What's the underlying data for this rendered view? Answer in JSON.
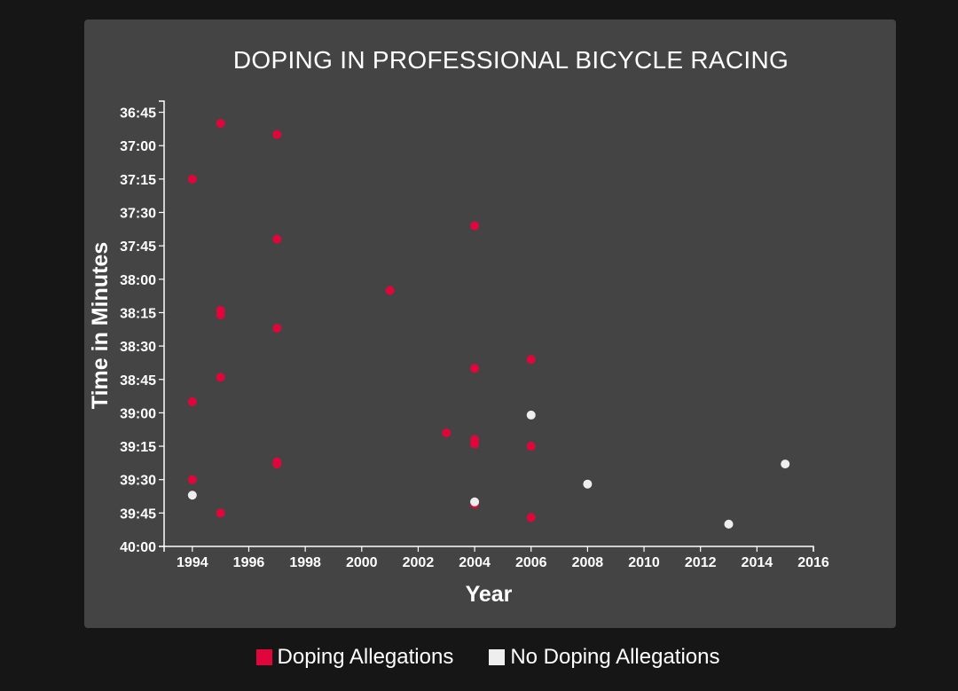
{
  "colors": {
    "background": "#161616",
    "panel": "#444444",
    "doping": "#e0063c",
    "no_doping": "#eeeeee"
  },
  "chart_data": {
    "type": "scatter",
    "title": "DOPING IN PROFESSIONAL BICYCLE RACING",
    "xlabel": "Year",
    "ylabel": "Time in Minutes",
    "xlim": [
      1993,
      2016
    ],
    "ylim": [
      "36:40",
      "40:00"
    ],
    "x_ticks": [
      1994,
      1996,
      1998,
      2000,
      2002,
      2004,
      2006,
      2008,
      2010,
      2012,
      2014,
      2016
    ],
    "y_ticks": [
      "36:45",
      "37:00",
      "37:15",
      "37:30",
      "37:45",
      "38:00",
      "38:15",
      "38:30",
      "38:45",
      "39:00",
      "39:15",
      "39:30",
      "39:45",
      "40:00"
    ],
    "y_inverted": true,
    "grid": false,
    "legend": {
      "position": "bottom-center",
      "entries": [
        {
          "label": "Doping Allegations",
          "key": "doping"
        },
        {
          "label": "No Doping Allegations",
          "key": "no_doping"
        }
      ]
    },
    "series": [
      {
        "name": "Doping Allegations",
        "key": "doping",
        "points": [
          {
            "x": 1995,
            "y": "36:50"
          },
          {
            "x": 1997,
            "y": "36:55"
          },
          {
            "x": 1994,
            "y": "37:15"
          },
          {
            "x": 2004,
            "y": "37:36"
          },
          {
            "x": 1997,
            "y": "37:42"
          },
          {
            "x": 2001,
            "y": "38:05"
          },
          {
            "x": 1995,
            "y": "38:14"
          },
          {
            "x": 1995,
            "y": "38:16"
          },
          {
            "x": 1997,
            "y": "38:22"
          },
          {
            "x": 2006,
            "y": "38:36"
          },
          {
            "x": 2004,
            "y": "38:40"
          },
          {
            "x": 1995,
            "y": "38:44"
          },
          {
            "x": 1994,
            "y": "38:55"
          },
          {
            "x": 2003,
            "y": "39:09"
          },
          {
            "x": 2004,
            "y": "39:12"
          },
          {
            "x": 2004,
            "y": "39:14"
          },
          {
            "x": 2006,
            "y": "39:15"
          },
          {
            "x": 1997,
            "y": "39:22"
          },
          {
            "x": 1997,
            "y": "39:23"
          },
          {
            "x": 1994,
            "y": "39:30"
          },
          {
            "x": 2004,
            "y": "39:41"
          },
          {
            "x": 1995,
            "y": "39:45"
          },
          {
            "x": 2006,
            "y": "39:47"
          }
        ]
      },
      {
        "name": "No Doping Allegations",
        "key": "no_doping",
        "points": [
          {
            "x": 2006,
            "y": "39:01"
          },
          {
            "x": 2015,
            "y": "39:23"
          },
          {
            "x": 2008,
            "y": "39:32"
          },
          {
            "x": 1994,
            "y": "39:37"
          },
          {
            "x": 2004,
            "y": "39:40"
          },
          {
            "x": 2013,
            "y": "39:50"
          }
        ]
      }
    ]
  }
}
